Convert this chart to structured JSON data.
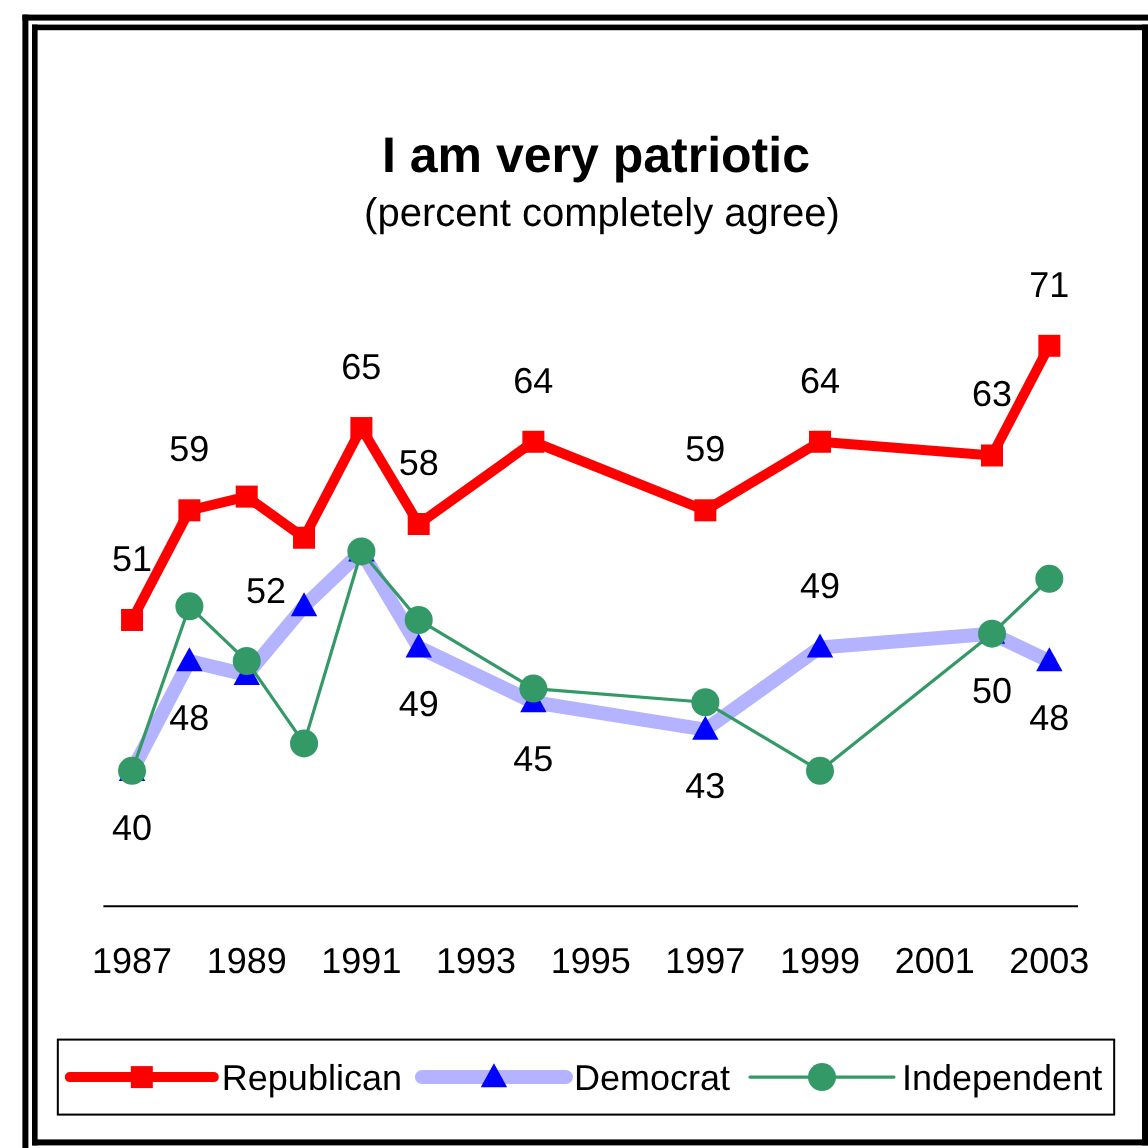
{
  "chart_data": {
    "type": "line",
    "title": "I am very patriotic",
    "subtitle": "(percent completely agree)",
    "x": [
      1987,
      1988,
      1989,
      1990,
      1991,
      1992,
      1994,
      1997,
      1999,
      2002,
      2003
    ],
    "xlim": [
      1986.5,
      2003.5
    ],
    "xticks": [
      1987,
      1989,
      1991,
      1993,
      1995,
      1997,
      1999,
      2001,
      2003
    ],
    "tick_labels": "x",
    "legend": "bottom",
    "series": [
      {
        "name": "Republican",
        "color": "#ff0000",
        "marker": "square",
        "values": [
          51,
          59,
          60,
          57,
          65,
          58,
          64,
          59,
          64,
          63,
          71
        ],
        "value_labels": [
          "51",
          "59",
          null,
          null,
          "65",
          "58",
          "64",
          "59",
          "64",
          "63",
          "71"
        ]
      },
      {
        "name": "Democrat",
        "color": "#0000ff",
        "marker": "triangle",
        "values": [
          40,
          48,
          47,
          52,
          56,
          49,
          45,
          43,
          49,
          50,
          48
        ],
        "value_labels": [
          "40",
          "48",
          null,
          "52",
          null,
          "49",
          "45",
          "43",
          "49",
          "50",
          "48"
        ]
      },
      {
        "name": "Independent",
        "color": "#339966",
        "marker": "circle",
        "values": [
          40,
          52,
          48,
          42,
          56,
          51,
          46,
          45,
          40,
          50,
          54
        ]
      }
    ]
  }
}
